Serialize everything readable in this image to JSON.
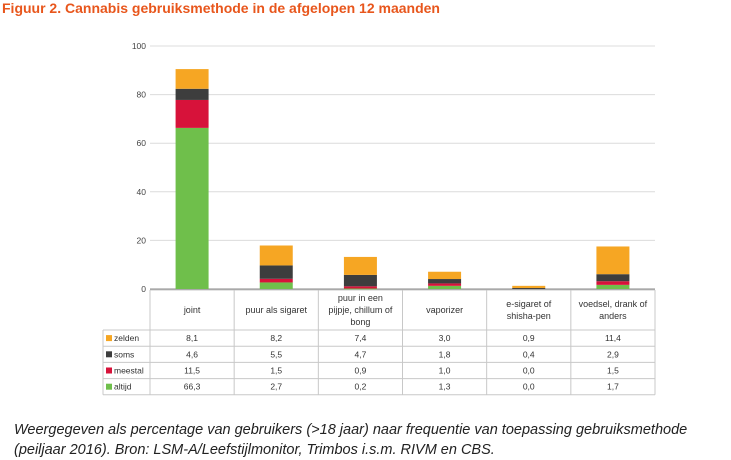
{
  "figure": {
    "title": "Figuur 2. Cannabis gebruiksmethode in de afgelopen 12 maanden",
    "caption_line1": "Weergegeven als percentage van gebruikers (>18 jaar) naar frequentie van toepassing gebruiksmethode",
    "caption_line2": "(peiljaar 2016). Bron: LSM-A/Leefstijlmonitor, Trimbos i.s.m. RIVM en CBS."
  },
  "chart_data": {
    "type": "bar",
    "stacked": true,
    "categories": [
      [
        "joint"
      ],
      [
        "puur als sigaret"
      ],
      [
        "puur in een",
        "pijpje, chillum of",
        "bong"
      ],
      [
        "vaporizer"
      ],
      [
        "e-sigaret of",
        "shisha-pen"
      ],
      [
        "voedsel, drank of",
        "anders"
      ]
    ],
    "series": [
      {
        "name": "altijd",
        "color": "#6fbf4b",
        "values": [
          66.3,
          2.7,
          0.2,
          1.3,
          0.0,
          1.7
        ],
        "labels": [
          "66,3",
          "2,7",
          "0,2",
          "1,3",
          "0,0",
          "1,7"
        ]
      },
      {
        "name": "meestal",
        "color": "#d7123a",
        "values": [
          11.5,
          1.5,
          0.9,
          1.0,
          0.0,
          1.5
        ],
        "labels": [
          "11,5",
          "1,5",
          "0,9",
          "1,0",
          "0,0",
          "1,5"
        ]
      },
      {
        "name": "soms",
        "color": "#3d3d3d",
        "values": [
          4.6,
          5.5,
          4.7,
          1.8,
          0.4,
          2.9
        ],
        "labels": [
          "4,6",
          "5,5",
          "4,7",
          "1,8",
          "0,4",
          "2,9"
        ]
      },
      {
        "name": "zelden",
        "color": "#f6a623",
        "values": [
          8.1,
          8.2,
          7.4,
          3.0,
          0.9,
          11.4
        ],
        "labels": [
          "8,1",
          "8,2",
          "7,4",
          "3,0",
          "0,9",
          "11,4"
        ]
      }
    ],
    "table_row_order": [
      "zelden",
      "soms",
      "meestal",
      "altijd"
    ],
    "yticks": [
      "0",
      "20",
      "40",
      "60",
      "80",
      "100"
    ],
    "ylim": [
      0,
      100
    ],
    "grid": true,
    "legend": "data-table-rows"
  }
}
